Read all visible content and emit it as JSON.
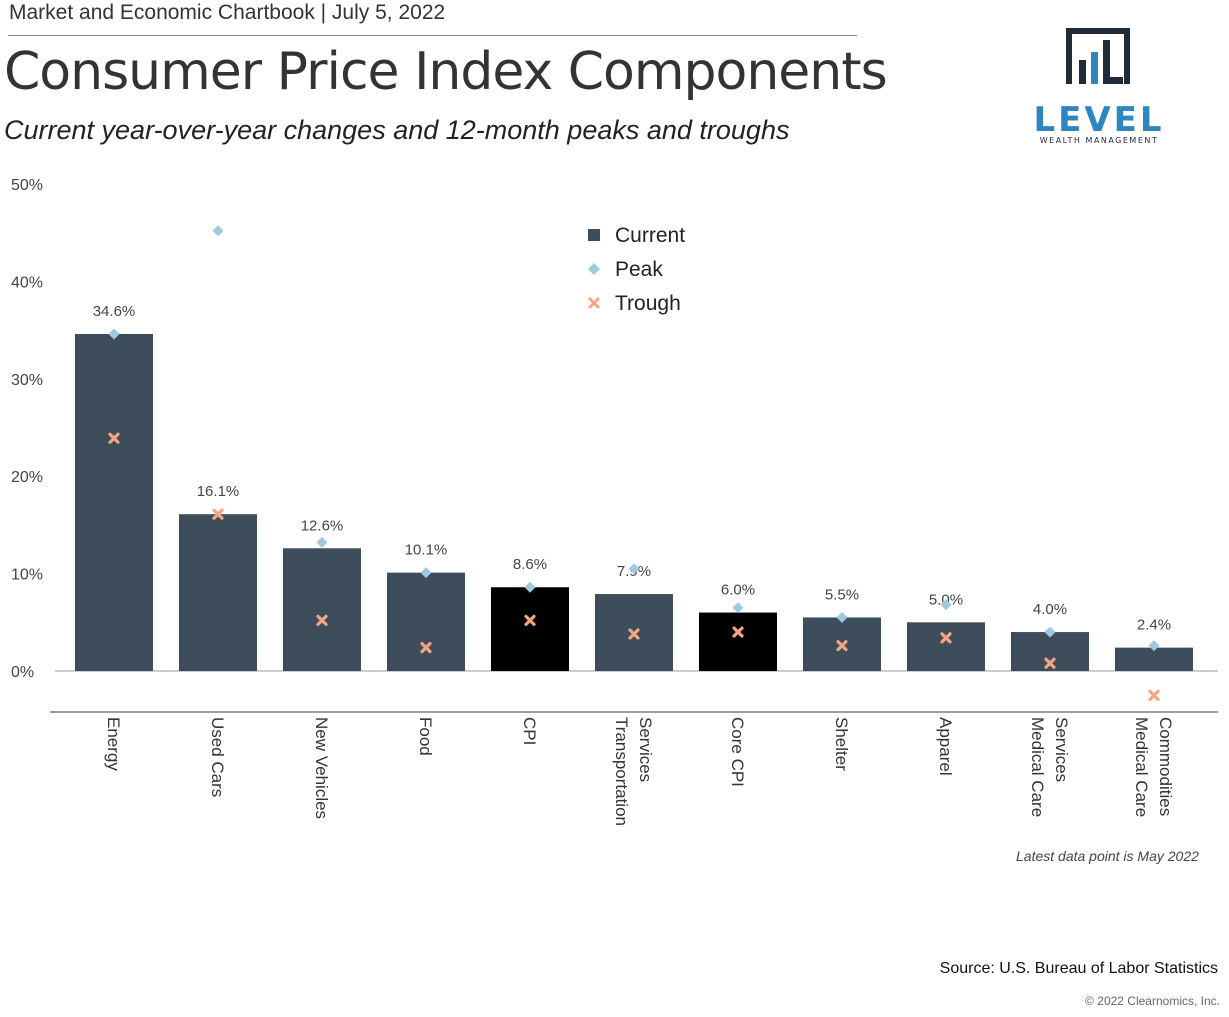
{
  "header": {
    "chartbook": "Market and Economic Chartbook | July 5, 2022",
    "title": "Consumer Price Index Components",
    "subtitle": "Current year-over-year changes and 12-month peaks and troughs"
  },
  "logo": {
    "word": "LEVEL",
    "sub": "WEALTH MANAGEMENT"
  },
  "chart_data": {
    "type": "bar",
    "categories": [
      [
        "Energy"
      ],
      [
        "Used Cars"
      ],
      [
        "New Vehicles"
      ],
      [
        "Food"
      ],
      [
        "CPI"
      ],
      [
        "Transportation",
        "Services"
      ],
      [
        "Core CPI"
      ],
      [
        "Shelter"
      ],
      [
        "Apparel"
      ],
      [
        "Medical Care",
        "Services"
      ],
      [
        "Medical Care",
        "Commodities"
      ]
    ],
    "series": [
      {
        "name": "Current",
        "values": [
          34.6,
          16.1,
          12.6,
          10.1,
          8.6,
          7.9,
          6.0,
          5.5,
          5.0,
          4.0,
          2.4
        ]
      },
      {
        "name": "Peak",
        "values": [
          34.6,
          45.2,
          13.2,
          10.1,
          8.6,
          10.5,
          6.5,
          5.5,
          6.8,
          4.0,
          2.6
        ]
      },
      {
        "name": "Trough",
        "values": [
          23.9,
          16.1,
          5.2,
          2.4,
          5.2,
          3.8,
          4.0,
          2.6,
          3.4,
          0.8,
          -2.5
        ]
      }
    ],
    "data_labels": [
      "34.6%",
      "16.1%",
      "12.6%",
      "10.1%",
      "8.6%",
      "7.9%",
      "6.0%",
      "5.5%",
      "5.0%",
      "4.0%",
      "2.4%"
    ],
    "highlight_categories": [
      "CPI",
      "Core CPI"
    ],
    "yticks": [
      "0%",
      "10%",
      "20%",
      "30%",
      "40%",
      "50%"
    ],
    "ylim": [
      0,
      50
    ],
    "colors": {
      "current": "#3d4d5c",
      "highlight": "#000000",
      "peak": "#9ecae1",
      "trough": "#f4a582"
    },
    "legend": {
      "position": "top-center",
      "entries": [
        "Current",
        "Peak",
        "Trough"
      ]
    },
    "grid": false
  },
  "footer": {
    "note": "Latest data point is May 2022",
    "source": "Source: U.S. Bureau of Labor Statistics",
    "copyright": "© 2022 Clearnomics, Inc."
  }
}
